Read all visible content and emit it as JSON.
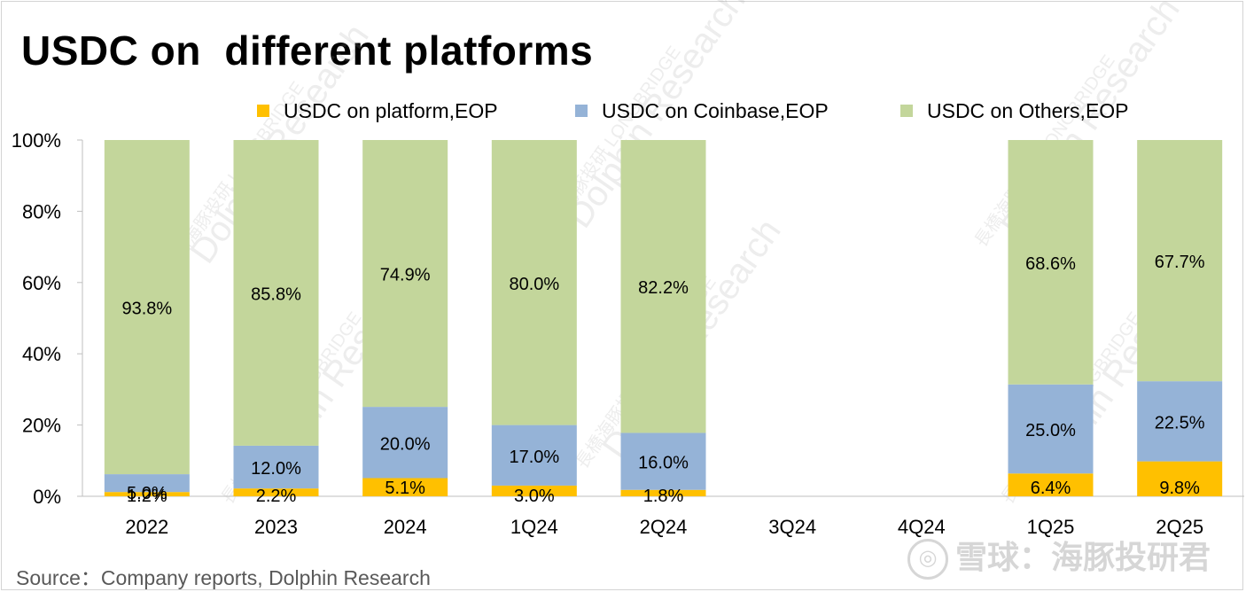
{
  "chart_data": {
    "type": "bar",
    "stacked": true,
    "title": "USDC on  different platforms",
    "categories": [
      "2022",
      "2023",
      "2024",
      "1Q24",
      "2Q24",
      "3Q24",
      "4Q24",
      "1Q25",
      "2Q25"
    ],
    "series": [
      {
        "name": "USDC on platform,EOP",
        "color": "#FFC000",
        "values": [
          1.2,
          2.2,
          5.1,
          3.0,
          1.8,
          null,
          null,
          6.4,
          9.8
        ],
        "labels": [
          "1.2%",
          "2.2%",
          "5.1%",
          "3.0%",
          "1.8%",
          "",
          "",
          "6.4%",
          "9.8%"
        ]
      },
      {
        "name": "USDC on Coinbase,EOP",
        "color": "#95B3D7",
        "values": [
          5.0,
          12.0,
          20.0,
          17.0,
          16.0,
          null,
          null,
          25.0,
          22.5
        ],
        "labels": [
          "5.0%",
          "12.0%",
          "20.0%",
          "17.0%",
          "16.0%",
          "",
          "",
          "25.0%",
          "22.5%"
        ]
      },
      {
        "name": "USDC on Others,EOP",
        "color": "#C3D69B",
        "values": [
          93.8,
          85.8,
          74.9,
          80.0,
          82.2,
          null,
          null,
          68.6,
          67.7
        ],
        "labels": [
          "93.8%",
          "85.8%",
          "74.9%",
          "80.0%",
          "82.2%",
          "",
          "",
          "68.6%",
          "67.7%"
        ]
      }
    ],
    "ylim": [
      0,
      100
    ],
    "yticks": [
      "0%",
      "20%",
      "40%",
      "60%",
      "80%",
      "100%"
    ],
    "legend": "top",
    "grid": false
  },
  "source": "Source：Company reports, Dolphin Research",
  "watermark": {
    "brand_cn": "長橋海豚投研",
    "brand_en": "LONGBRIDGE",
    "brand_name": "Dolphin Research",
    "seal": "雪球：海豚投研君"
  }
}
